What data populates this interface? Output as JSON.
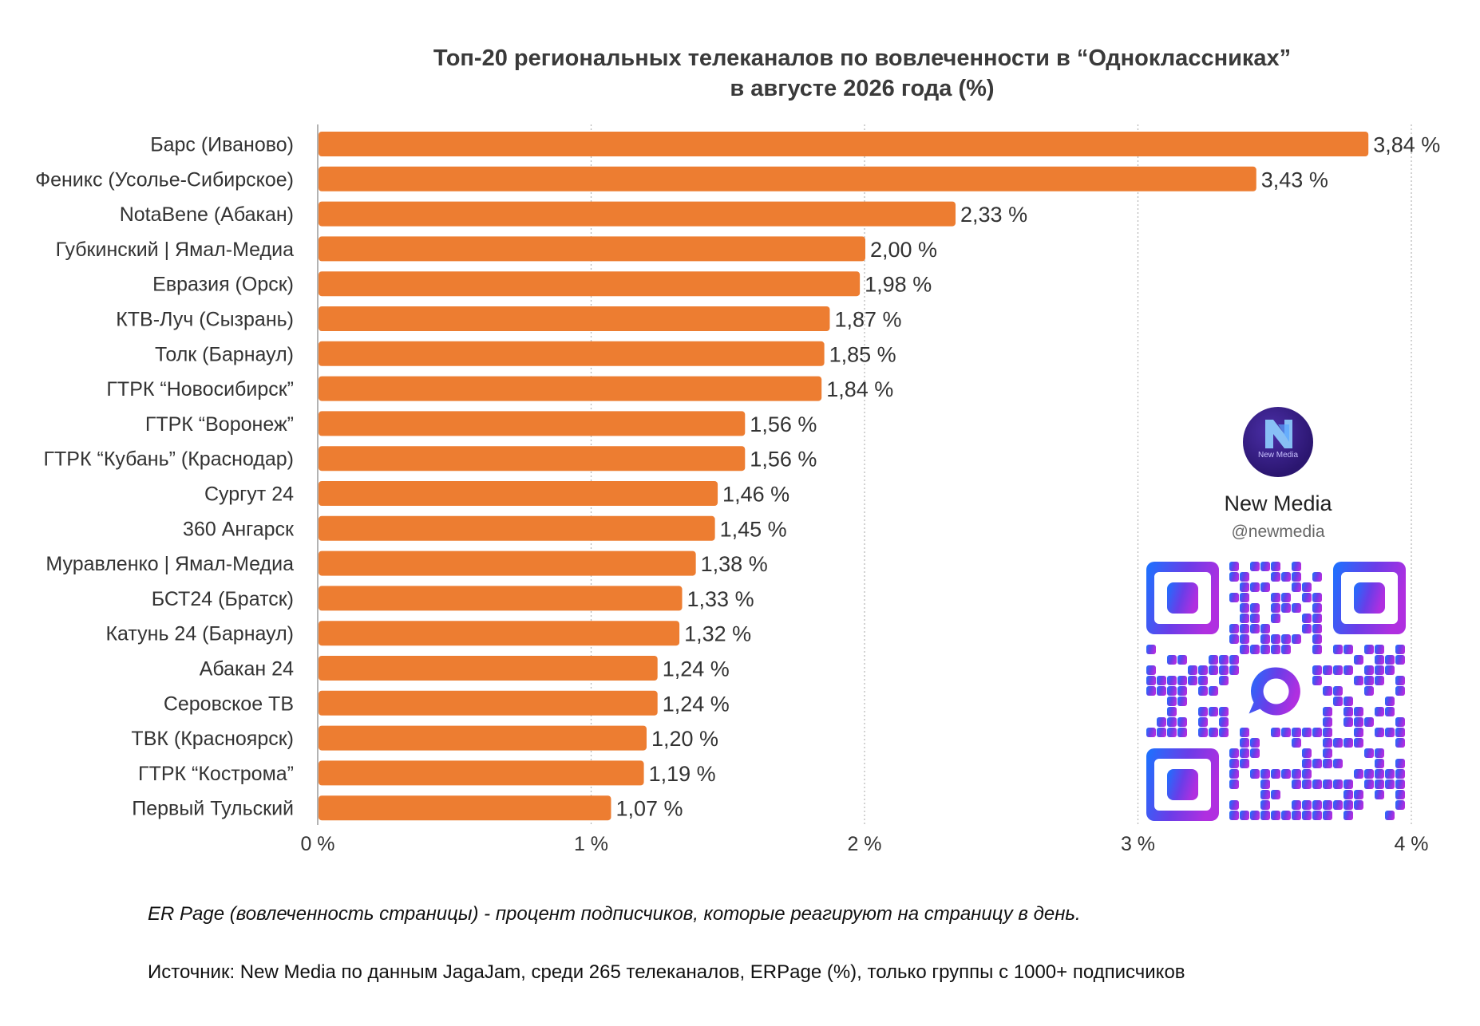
{
  "chart_data": {
    "type": "bar",
    "orientation": "horizontal",
    "title_lines": [
      "Топ-20 региональных телеканалов по вовлеченности в “Одноклассниках”",
      "в августе 2026 года (%)"
    ],
    "categories": [
      "Барс (Иваново)",
      "Феникс (Усолье-Сибирское)",
      "NotaBene (Абакан)",
      "Губкинский | Ямал-Медиа",
      "Евразия (Орск)",
      "КТВ-Луч (Сызрань)",
      "Толк (Барнаул)",
      "ГТРК “Новосибирск”",
      "ГТРК “Воронеж”",
      "ГТРК “Кубань” (Краснодар)",
      "Сургут 24",
      "360 Ангарск",
      "Муравленко | Ямал-Медиа",
      "БСТ24 (Братск)",
      "Катунь 24 (Барнаул)",
      "Абакан 24",
      "Серовское ТВ",
      "ТВК (Красноярск)",
      "ГТРК “Кострома”",
      "Первый Тульский"
    ],
    "values": [
      3.84,
      3.43,
      2.33,
      2.0,
      1.98,
      1.87,
      1.85,
      1.84,
      1.56,
      1.56,
      1.46,
      1.45,
      1.38,
      1.33,
      1.32,
      1.24,
      1.24,
      1.2,
      1.19,
      1.07
    ],
    "value_labels": [
      "3,84 %",
      "3,43 %",
      "2,33 %",
      "2,00 %",
      "1,98 %",
      "1,87 %",
      "1,85 %",
      "1,84 %",
      "1,56 %",
      "1,56 %",
      "1,46 %",
      "1,45 %",
      "1,38 %",
      "1,33 %",
      "1,32 %",
      "1,24 %",
      "1,24 %",
      "1,20 %",
      "1,19 %",
      "1,07 %"
    ],
    "xlim": [
      0,
      4
    ],
    "x_ticks": [
      0,
      1,
      2,
      3,
      4
    ],
    "x_tick_labels": [
      "0 %",
      "1 %",
      "2 %",
      "3 %",
      "4 %"
    ],
    "grid": "vertical dotted",
    "bar_color": "#ED7D31"
  },
  "brand": {
    "name": "New Media",
    "handle": "@newmedia",
    "logo_text": "New Media",
    "logo_color": "#2B1670",
    "qr_gradient": [
      "#1A73FF",
      "#6A3DE8",
      "#B02FE0"
    ]
  },
  "footnote": "ER Page (вовлеченность страницы) - процент подписчиков, которые реагируют на страницу в день.",
  "source": "Источник: New Media по данным JagaJam, среди 265 телеканалов, ERPage (%), только группы с 1000+ подписчиков"
}
